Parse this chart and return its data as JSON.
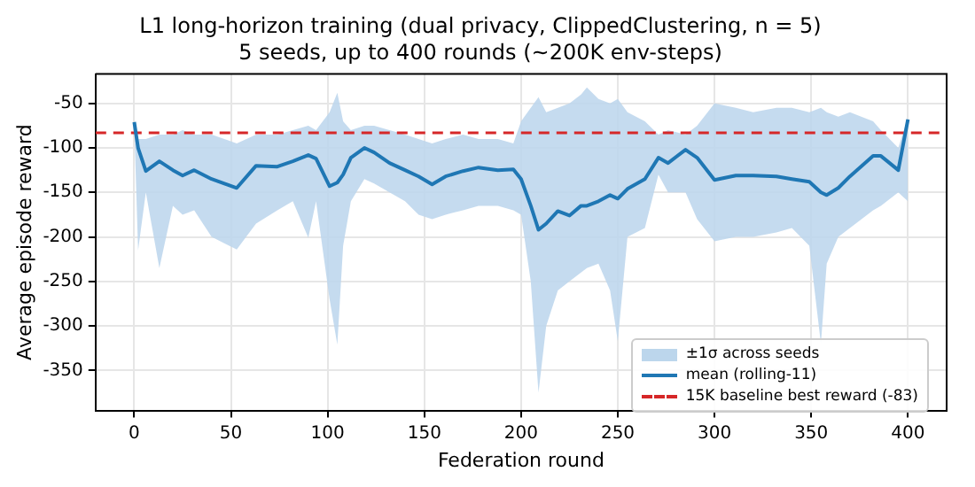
{
  "chart_data": {
    "type": "line",
    "title": "L1 long-horizon training (dual privacy, ClippedClustering, n = 5)",
    "subtitle": "5 seeds, up to 400 rounds (~200K env-steps)",
    "xlabel": "Federation round",
    "ylabel": "Average episode reward",
    "x": [
      0,
      2,
      6,
      13,
      20,
      25,
      31,
      40,
      53,
      63,
      74,
      82,
      90,
      94,
      101,
      105,
      108,
      112,
      119,
      124,
      132,
      140,
      147,
      154,
      161,
      170,
      178,
      188,
      196,
      200,
      205,
      209,
      213,
      219,
      225,
      231,
      234,
      240,
      246,
      250,
      255,
      264,
      271,
      276,
      285,
      291,
      300,
      311,
      320,
      332,
      340,
      349,
      355,
      358,
      364,
      370,
      382,
      386,
      395,
      400
    ],
    "series": [
      {
        "name": "mean (rolling-11)",
        "color": "#1f77b4",
        "values": [
          -71,
          -100,
          -126,
          -115,
          -125,
          -131,
          -125,
          -135,
          -145,
          -120,
          -121,
          -115,
          -108,
          -112,
          -143,
          -139,
          -130,
          -111,
          -100,
          -105,
          -117,
          -125,
          -132,
          -141,
          -132,
          -126,
          -122,
          -125,
          -124,
          -135,
          -165,
          -192,
          -185,
          -171,
          -176,
          -165,
          -165,
          -160,
          -153,
          -157,
          -146,
          -135,
          -111,
          -117,
          -102,
          -111,
          -136,
          -131,
          -131,
          -132,
          -135,
          -138,
          -150,
          -153,
          -145,
          -132,
          -109,
          -109,
          -125,
          -68
        ],
        "lower": [
          -75,
          -215,
          -150,
          -235,
          -165,
          -175,
          -170,
          -200,
          -214,
          -185,
          -170,
          -160,
          -201,
          -160,
          -270,
          -321,
          -210,
          -160,
          -135,
          -140,
          -150,
          -160,
          -175,
          -180,
          -175,
          -170,
          -165,
          -165,
          -170,
          -175,
          -250,
          -375,
          -300,
          -260,
          -250,
          -240,
          -235,
          -230,
          -260,
          -317,
          -200,
          -190,
          -130,
          -150,
          -150,
          -180,
          -205,
          -200,
          -200,
          -195,
          -190,
          -210,
          -320,
          -230,
          -200,
          -190,
          -170,
          -165,
          -150,
          -160
        ],
        "upper": [
          -70,
          -90,
          -90,
          -85,
          -85,
          -80,
          -85,
          -85,
          -95,
          -85,
          -85,
          -80,
          -75,
          -80,
          -60,
          -38,
          -70,
          -80,
          -75,
          -75,
          -80,
          -85,
          -90,
          -95,
          -90,
          -85,
          -90,
          -90,
          -95,
          -70,
          -55,
          -43,
          -60,
          -55,
          -50,
          -40,
          -32,
          -45,
          -50,
          -45,
          -60,
          -70,
          -85,
          -80,
          -85,
          -75,
          -50,
          -55,
          -60,
          -55,
          -55,
          -60,
          -55,
          -60,
          -65,
          -60,
          -70,
          -80,
          -100,
          -66
        ]
      }
    ],
    "annotations": [
      "±1σ across seeds"
    ],
    "ref_lines": [
      {
        "axis": "y",
        "value": -83,
        "label": "15K baseline best reward (-83)",
        "color": "#d62728",
        "line_style": "dashed"
      }
    ],
    "xlim": [
      -20,
      420
    ],
    "xticks": [
      0,
      50,
      100,
      150,
      200,
      250,
      300,
      350,
      400
    ],
    "ylim": [
      -395,
      -17
    ],
    "yticks": [
      -350,
      -300,
      -250,
      -200,
      -150,
      -100,
      -50
    ],
    "grid": true,
    "legend": "bottom right",
    "marker": "none",
    "line_style": "solid"
  }
}
